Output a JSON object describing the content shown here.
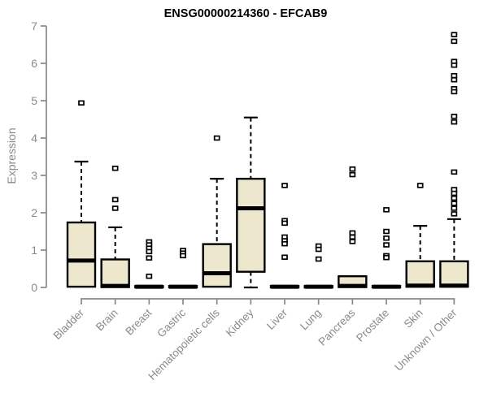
{
  "colors": {
    "box_fill": "#ede7ce",
    "box_border": "#000000",
    "median": "#000000",
    "whisker": "#000000",
    "outlier": "#000000",
    "axis": "#898989",
    "tick_text": "#8a8a8a",
    "title_text": "#000000",
    "background": "#ffffff"
  },
  "chart_data": {
    "type": "boxplot",
    "title": "ENSG00000214360 - EFCAB9",
    "ylabel": "Expression",
    "xlabel": "",
    "ylim": [
      0,
      7
    ],
    "yticks": [
      0,
      1,
      2,
      3,
      4,
      5,
      6,
      7
    ],
    "grid": false,
    "legend": "none",
    "categories": [
      "Bladder",
      "Brain",
      "Breast",
      "Gastric",
      "Hematopoietic cells",
      "Kidney",
      "Liver",
      "Lung",
      "Pancreas",
      "Prostate",
      "Skin",
      "Unknown / Other"
    ],
    "series": [
      {
        "category": "Bladder",
        "min": 0,
        "q1": 0.02,
        "median": 0.72,
        "q3": 1.74,
        "max": 3.37,
        "outliers": [
          4.94
        ]
      },
      {
        "category": "Brain",
        "min": 0,
        "q1": 0.01,
        "median": 0.04,
        "q3": 0.75,
        "max": 1.61,
        "outliers": [
          3.19,
          2.35,
          2.12
        ]
      },
      {
        "category": "Breast",
        "min": 0,
        "q1": 0.0,
        "median": 0.02,
        "q3": 0.04,
        "max": 0.04,
        "outliers": [
          1.22,
          1.14,
          1.05,
          0.96,
          0.79,
          0.3
        ]
      },
      {
        "category": "Gastric",
        "min": 0,
        "q1": 0.0,
        "median": 0.02,
        "q3": 0.04,
        "max": 0.04,
        "outliers": [
          0.99,
          0.92,
          0.85
        ]
      },
      {
        "category": "Hematopoietic cells",
        "min": 0,
        "q1": 0.02,
        "median": 0.38,
        "q3": 1.16,
        "max": 2.91,
        "outliers": [
          4.0
        ]
      },
      {
        "category": "Kidney",
        "min": 0,
        "q1": 0.42,
        "median": 2.12,
        "q3": 2.91,
        "max": 4.55,
        "outliers": []
      },
      {
        "category": "Liver",
        "min": 0,
        "q1": 0.0,
        "median": 0.02,
        "q3": 0.04,
        "max": 0.04,
        "outliers": [
          2.73,
          1.79,
          1.72,
          1.35,
          1.25,
          1.17,
          0.81
        ]
      },
      {
        "category": "Lung",
        "min": 0,
        "q1": 0.0,
        "median": 0.02,
        "q3": 0.04,
        "max": 0.04,
        "outliers": [
          1.11,
          1.02,
          0.76
        ]
      },
      {
        "category": "Pancreas",
        "min": 0,
        "q1": 0.01,
        "median": 0.04,
        "q3": 0.3,
        "max": 0.3,
        "outliers": [
          3.17,
          3.02,
          1.46,
          1.35,
          1.23
        ]
      },
      {
        "category": "Prostate",
        "min": 0,
        "q1": 0.0,
        "median": 0.02,
        "q3": 0.04,
        "max": 0.04,
        "outliers": [
          2.08,
          1.5,
          1.32,
          1.14,
          0.85,
          0.8
        ]
      },
      {
        "category": "Skin",
        "min": 0,
        "q1": 0.02,
        "median": 0.05,
        "q3": 0.7,
        "max": 1.65,
        "outliers": [
          2.73
        ]
      },
      {
        "category": "Unknown / Other",
        "min": 0,
        "q1": 0.02,
        "median": 0.05,
        "q3": 0.7,
        "max": 1.83,
        "outliers": [
          6.77,
          6.59,
          6.05,
          5.95,
          5.67,
          5.56,
          5.32,
          5.24,
          4.58,
          4.43,
          3.09,
          2.62,
          2.52,
          2.39,
          2.25,
          2.12,
          1.97
        ]
      }
    ]
  }
}
